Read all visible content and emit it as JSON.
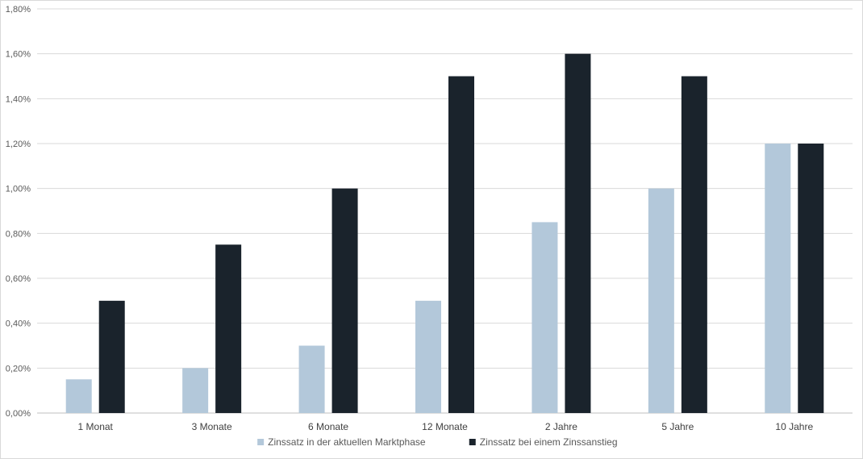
{
  "chart_data": {
    "type": "bar",
    "categories": [
      "1 Monat",
      "3 Monate",
      "6 Monate",
      "12 Monate",
      "2 Jahre",
      "5 Jahre",
      "10 Jahre"
    ],
    "series": [
      {
        "name": "Zinssatz in der aktuellen Marktphase",
        "values": [
          0.15,
          0.2,
          0.3,
          0.5,
          0.85,
          1.0,
          1.2
        ],
        "color": "#b3c8da"
      },
      {
        "name": "Zinssatz bei einem Zinssanstieg",
        "values": [
          0.5,
          0.75,
          1.0,
          1.5,
          1.6,
          1.5,
          1.2
        ],
        "color": "#1a232c"
      }
    ],
    "yticks": [
      "0,00%",
      "0,20%",
      "0,40%",
      "0,60%",
      "0,80%",
      "1,00%",
      "1,20%",
      "1,40%",
      "1,60%",
      "1,80%"
    ],
    "ylim": [
      0,
      1.8
    ],
    "grid": true,
    "legend_position": "bottom"
  }
}
